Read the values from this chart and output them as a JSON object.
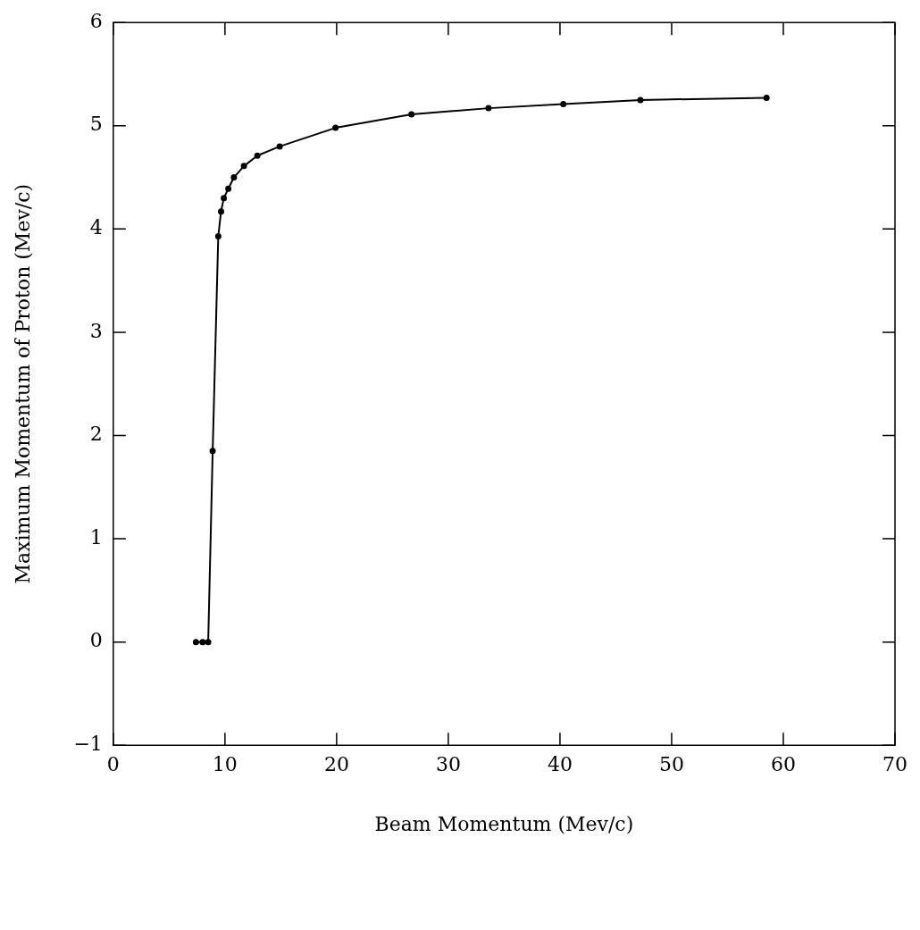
{
  "chart_data": {
    "type": "line",
    "xlabel": "Beam Momentum (Mev/c)",
    "ylabel": "Maximum Momentum of Proton (Mev/c)",
    "xlim": [
      0,
      70
    ],
    "xticks": [
      0,
      10,
      20,
      30,
      40,
      50,
      60,
      70
    ],
    "ylim": [
      -1,
      6
    ],
    "yticks": [
      -1,
      0,
      1,
      2,
      3,
      4,
      5,
      6
    ],
    "grid": false,
    "legend": false,
    "marker": "circle",
    "line_style": "solid",
    "series": [
      {
        "color": "#000000",
        "x": [
          7.4,
          8.0,
          8.5,
          8.9,
          9.4,
          9.65,
          9.9,
          10.3,
          10.8,
          11.7,
          12.9,
          14.9,
          19.9,
          26.7,
          33.6,
          40.3,
          47.2,
          58.5
        ],
        "values": [
          0,
          0,
          0,
          1.85,
          3.93,
          4.17,
          4.3,
          4.39,
          4.5,
          4.61,
          4.71,
          4.8,
          4.98,
          5.11,
          5.17,
          5.21,
          5.25,
          5.27
        ]
      }
    ]
  }
}
